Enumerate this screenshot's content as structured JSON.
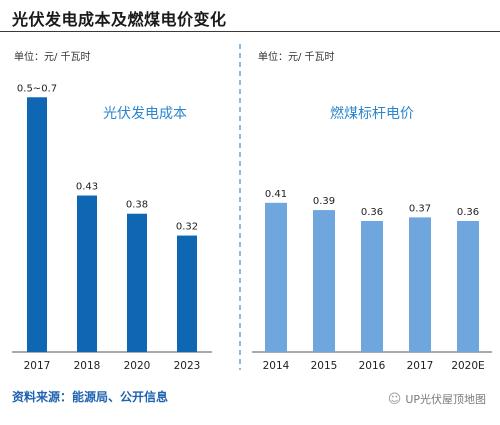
{
  "header": {
    "title": "光伏发电成本及燃煤电价变化"
  },
  "footer": {
    "source": "资料来源：能源局、公开信息",
    "watermark": "UP光伏屋顶地图",
    "watermark_icon": "wechat-icon"
  },
  "colors": {
    "pv_bar": "#0f67b3",
    "coal_bar": "#6fa6dd",
    "pv_label": "#2a86cf",
    "coal_label": "#2a86cf",
    "divider": "#3d8fd4",
    "axis": "#555555"
  },
  "chart_data": [
    {
      "type": "bar",
      "unit_label": "单位：元/ 千瓦时",
      "title": "光伏发电成本",
      "categories": [
        "2017",
        "2018",
        "2020",
        "2023"
      ],
      "values": [
        0.7,
        0.43,
        0.38,
        0.32
      ],
      "data_labels": [
        "0.5~0.7",
        "0.43",
        "0.38",
        "0.32"
      ],
      "range_low": [
        0.5,
        null,
        null,
        null
      ],
      "ylim": [
        0,
        0.72
      ],
      "grid": false,
      "legend": "none"
    },
    {
      "type": "bar",
      "unit_label": "单位：元/ 千瓦时",
      "title": "燃煤标杆电价",
      "categories": [
        "2014",
        "2015",
        "2016",
        "2017",
        "2020E"
      ],
      "values": [
        0.41,
        0.39,
        0.36,
        0.37,
        0.36
      ],
      "data_labels": [
        "0.41",
        "0.39",
        "0.36",
        "0.37",
        "0.36"
      ],
      "ylim": [
        0,
        0.72
      ],
      "grid": false,
      "legend": "none"
    }
  ]
}
